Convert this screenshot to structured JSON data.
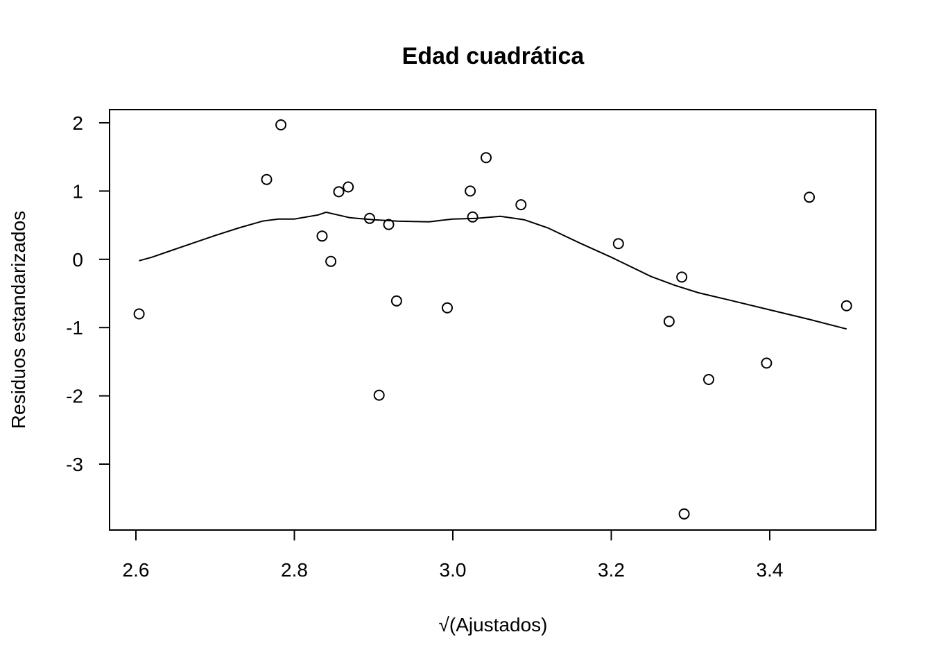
{
  "chart_data": {
    "type": "scatter",
    "title": "Edad cuadrática",
    "xlabel": "√(Ajustados)",
    "ylabel": "Residuos estandarizados",
    "xlim": [
      2.6,
      3.5
    ],
    "ylim": [
      -3.9,
      2.2
    ],
    "xticks": [
      2.6,
      2.8,
      3.0,
      3.2,
      3.4
    ],
    "xtick_labels": [
      "2.6",
      "2.8",
      "3.0",
      "3.2",
      "3.4"
    ],
    "yticks": [
      2,
      1,
      0,
      -1,
      -2,
      -3
    ],
    "ytick_labels": [
      "2",
      "1",
      "0",
      "-1",
      "-2",
      "-3"
    ],
    "grid": false,
    "legend": "none",
    "points": [
      {
        "x": 2.604,
        "y": -0.8
      },
      {
        "x": 2.765,
        "y": 1.17
      },
      {
        "x": 2.783,
        "y": 1.97
      },
      {
        "x": 2.835,
        "y": 0.34
      },
      {
        "x": 2.846,
        "y": -0.03
      },
      {
        "x": 2.856,
        "y": 0.99
      },
      {
        "x": 2.868,
        "y": 1.06
      },
      {
        "x": 2.895,
        "y": 0.6
      },
      {
        "x": 2.907,
        "y": -1.99
      },
      {
        "x": 2.919,
        "y": 0.51
      },
      {
        "x": 2.929,
        "y": -0.61
      },
      {
        "x": 2.993,
        "y": -0.71
      },
      {
        "x": 3.022,
        "y": 1.0
      },
      {
        "x": 3.025,
        "y": 0.62
      },
      {
        "x": 3.042,
        "y": 1.49
      },
      {
        "x": 3.086,
        "y": 0.8
      },
      {
        "x": 3.209,
        "y": 0.23
      },
      {
        "x": 3.273,
        "y": -0.91
      },
      {
        "x": 3.289,
        "y": -0.26
      },
      {
        "x": 3.292,
        "y": -3.73
      },
      {
        "x": 3.323,
        "y": -1.76
      },
      {
        "x": 3.396,
        "y": -1.52
      },
      {
        "x": 3.45,
        "y": 0.91
      },
      {
        "x": 3.497,
        "y": -0.68
      }
    ],
    "smooth_line": {
      "x": [
        2.604,
        2.62,
        2.65,
        2.7,
        2.73,
        2.76,
        2.78,
        2.8,
        2.83,
        2.84,
        2.87,
        2.9,
        2.93,
        2.97,
        3.0,
        3.03,
        3.06,
        3.09,
        3.12,
        3.16,
        3.2,
        3.25,
        3.28,
        3.31,
        3.35,
        3.4,
        3.45,
        3.497
      ],
      "y": [
        -0.02,
        0.03,
        0.15,
        0.35,
        0.46,
        0.56,
        0.59,
        0.59,
        0.65,
        0.69,
        0.61,
        0.58,
        0.56,
        0.55,
        0.59,
        0.6,
        0.63,
        0.58,
        0.46,
        0.24,
        0.03,
        -0.25,
        -0.38,
        -0.49,
        -0.6,
        -0.74,
        -0.88,
        -1.02
      ]
    }
  }
}
